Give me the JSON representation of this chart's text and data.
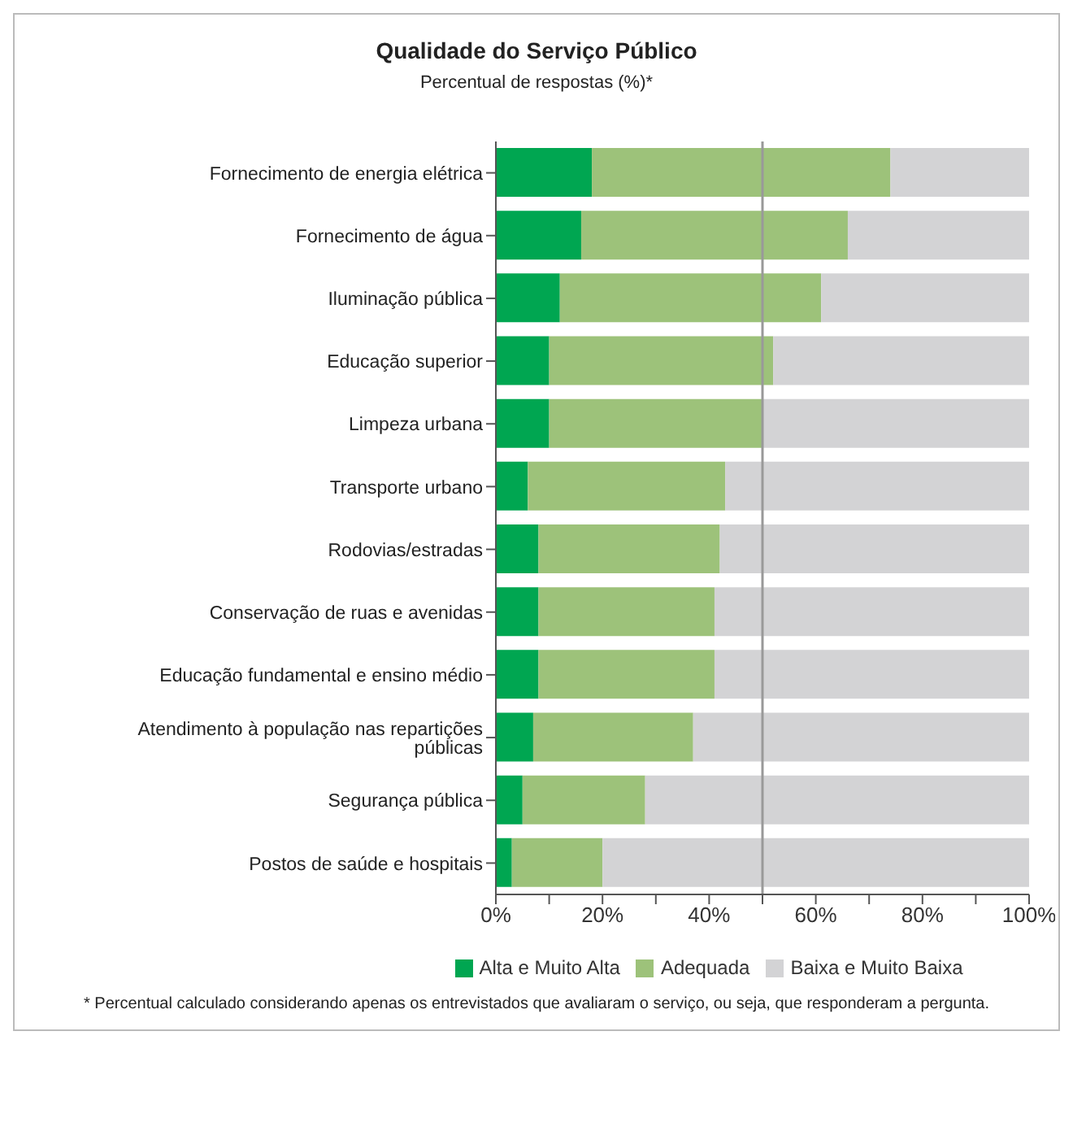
{
  "chart_data": {
    "type": "bar",
    "orientation": "horizontal",
    "stacked": true,
    "title": "Qualidade do Serviço Público",
    "subtitle": "Percentual de respostas (%)*",
    "categories": [
      "Fornecimento de energia elétrica",
      "Fornecimento de água",
      "Iluminação pública",
      "Educação superior",
      "Limpeza urbana",
      "Transporte urbano",
      "Rodovias/estradas",
      "Conservação de ruas e avenidas",
      "Educação fundamental e ensino médio",
      "Atendimento à população nas repartições públicas",
      "Segurança pública",
      "Postos de saúde e hospitais"
    ],
    "series": [
      {
        "name": "Alta e Muito Alta",
        "color": "#00a651",
        "values": [
          18,
          16,
          12,
          10,
          10,
          6,
          8,
          8,
          8,
          7,
          5,
          3
        ]
      },
      {
        "name": "Adequada",
        "color": "#9dc27a",
        "values": [
          56,
          50,
          49,
          42,
          40,
          37,
          34,
          33,
          33,
          30,
          23,
          17
        ]
      },
      {
        "name": "Baixa e Muito Baixa",
        "color": "#d3d3d5",
        "values": [
          26,
          34,
          39,
          48,
          50,
          57,
          58,
          59,
          59,
          63,
          72,
          80
        ]
      }
    ],
    "xlim": [
      0,
      100
    ],
    "xticks": [
      {
        "value": 0,
        "label": "0%"
      },
      {
        "value": 10,
        "label": null
      },
      {
        "value": 20,
        "label": "20%"
      },
      {
        "value": 30,
        "label": null
      },
      {
        "value": 40,
        "label": "40%"
      },
      {
        "value": 50,
        "label": null
      },
      {
        "value": 60,
        "label": "60%"
      },
      {
        "value": 70,
        "label": null
      },
      {
        "value": 80,
        "label": "80%"
      },
      {
        "value": 90,
        "label": null
      },
      {
        "value": 100,
        "label": "100%"
      }
    ],
    "ref_lines": [
      {
        "axis": "x",
        "value": 50,
        "color": "#999999"
      }
    ],
    "legend": "bottom",
    "grid": false,
    "annotations": [
      "* Percentual calculado considerando apenas os entrevistados que avaliaram o serviço, ou seja, que responderam a pergunta."
    ]
  }
}
